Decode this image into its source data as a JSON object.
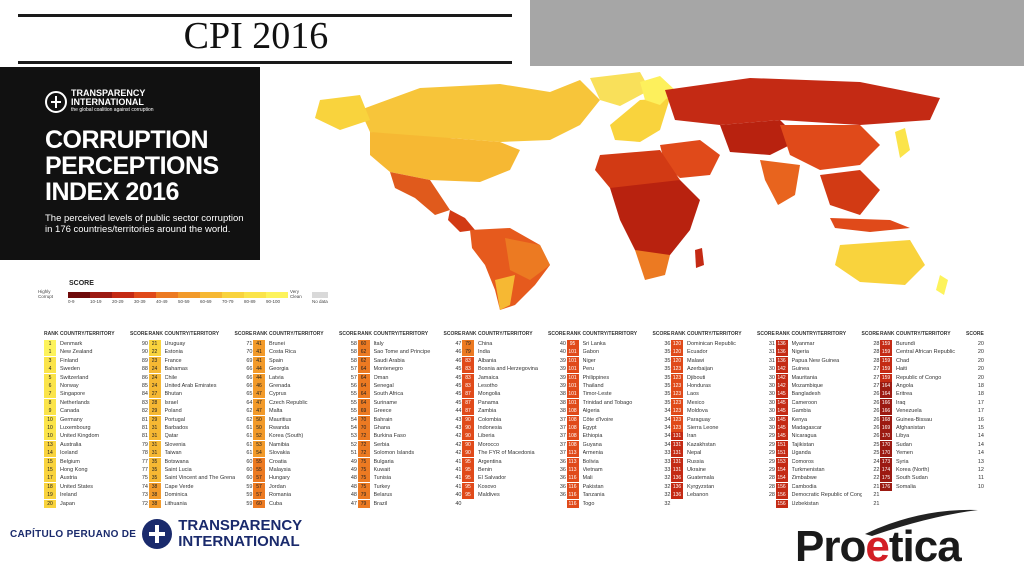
{
  "slide_title": "CPI 2016",
  "cover": {
    "org_line1": "TRANSPARENCY",
    "org_line2": "INTERNATIONAL",
    "org_tagline": "the global coalition against corruption",
    "heading1": "CORRUPTION",
    "heading2": "PERCEPTIONS",
    "heading3": "INDEX 2016",
    "subtitle": "The perceived levels of public sector corruption in 176 countries/territories around the world."
  },
  "legend": {
    "title": "SCORE",
    "low_label": "Highly Corrupt",
    "high_label": "Very Clean",
    "no_data": "No data",
    "bins": [
      {
        "label": "0-9",
        "color": "#6e0b0b"
      },
      {
        "label": "10-19",
        "color": "#9c1a12"
      },
      {
        "label": "20-29",
        "color": "#c42a14"
      },
      {
        "label": "30-39",
        "color": "#e04a1a"
      },
      {
        "label": "40-49",
        "color": "#ec7a22"
      },
      {
        "label": "50-59",
        "color": "#f29a2a"
      },
      {
        "label": "60-69",
        "color": "#f6b833"
      },
      {
        "label": "70-79",
        "color": "#f9d33d"
      },
      {
        "label": "80-89",
        "color": "#fbe44a"
      },
      {
        "label": "90-100",
        "color": "#fdf35c"
      }
    ],
    "no_data_color": "#d9d9d9"
  },
  "table": {
    "headers": {
      "rank": "RANK",
      "country": "COUNTRY/TERRITORY",
      "score": "SCORE"
    },
    "columns": [
      [
        [
          "1",
          "Denmark",
          "90"
        ],
        [
          "1",
          "New Zealand",
          "90"
        ],
        [
          "3",
          "Finland",
          "89"
        ],
        [
          "4",
          "Sweden",
          "88"
        ],
        [
          "5",
          "Switzerland",
          "86"
        ],
        [
          "6",
          "Norway",
          "85"
        ],
        [
          "7",
          "Singapore",
          "84"
        ],
        [
          "8",
          "Netherlands",
          "83"
        ],
        [
          "9",
          "Canada",
          "82"
        ],
        [
          "10",
          "Germany",
          "81"
        ],
        [
          "10",
          "Luxembourg",
          "81"
        ],
        [
          "10",
          "United Kingdom",
          "81"
        ],
        [
          "13",
          "Australia",
          "79"
        ],
        [
          "14",
          "Iceland",
          "78"
        ],
        [
          "15",
          "Belgium",
          "77"
        ],
        [
          "15",
          "Hong Kong",
          "77"
        ],
        [
          "17",
          "Austria",
          "75"
        ],
        [
          "18",
          "United States",
          "74"
        ],
        [
          "19",
          "Ireland",
          "73"
        ],
        [
          "20",
          "Japan",
          "72"
        ]
      ],
      [
        [
          "21",
          "Uruguay",
          "71"
        ],
        [
          "22",
          "Estonia",
          "70"
        ],
        [
          "23",
          "France",
          "69"
        ],
        [
          "24",
          "Bahamas",
          "66"
        ],
        [
          "24",
          "Chile",
          "66"
        ],
        [
          "24",
          "United Arab Emirates",
          "66"
        ],
        [
          "27",
          "Bhutan",
          "65"
        ],
        [
          "28",
          "Israel",
          "64"
        ],
        [
          "29",
          "Poland",
          "62"
        ],
        [
          "29",
          "Portugal",
          "62"
        ],
        [
          "31",
          "Barbados",
          "61"
        ],
        [
          "31",
          "Qatar",
          "61"
        ],
        [
          "31",
          "Slovenia",
          "61"
        ],
        [
          "31",
          "Taiwan",
          "61"
        ],
        [
          "35",
          "Botswana",
          "60"
        ],
        [
          "35",
          "Saint Lucia",
          "60"
        ],
        [
          "35",
          "Saint Vincent and The Grenadines",
          "60"
        ],
        [
          "38",
          "Cape Verde",
          "59"
        ],
        [
          "38",
          "Dominica",
          "59"
        ],
        [
          "38",
          "Lithuania",
          "59"
        ]
      ],
      [
        [
          "41",
          "Brunei",
          "58"
        ],
        [
          "41",
          "Costa Rica",
          "58"
        ],
        [
          "41",
          "Spain",
          "58"
        ],
        [
          "44",
          "Georgia",
          "57"
        ],
        [
          "44",
          "Latvia",
          "57"
        ],
        [
          "46",
          "Grenada",
          "56"
        ],
        [
          "47",
          "Cyprus",
          "55"
        ],
        [
          "47",
          "Czech Republic",
          "55"
        ],
        [
          "47",
          "Malta",
          "55"
        ],
        [
          "50",
          "Mauritius",
          "54"
        ],
        [
          "50",
          "Rwanda",
          "54"
        ],
        [
          "52",
          "Korea (South)",
          "53"
        ],
        [
          "53",
          "Namibia",
          "52"
        ],
        [
          "54",
          "Slovakia",
          "51"
        ],
        [
          "55",
          "Croatia",
          "49"
        ],
        [
          "55",
          "Malaysia",
          "49"
        ],
        [
          "57",
          "Hungary",
          "48"
        ],
        [
          "57",
          "Jordan",
          "48"
        ],
        [
          "57",
          "Romania",
          "48"
        ],
        [
          "60",
          "Cuba",
          "47"
        ]
      ],
      [
        [
          "60",
          "Italy",
          "47"
        ],
        [
          "62",
          "Sao Tome and Principe",
          "46"
        ],
        [
          "62",
          "Saudi Arabia",
          "46"
        ],
        [
          "64",
          "Montenegro",
          "45"
        ],
        [
          "64",
          "Oman",
          "45"
        ],
        [
          "64",
          "Senegal",
          "45"
        ],
        [
          "64",
          "South Africa",
          "45"
        ],
        [
          "64",
          "Suriname",
          "45"
        ],
        [
          "69",
          "Greece",
          "44"
        ],
        [
          "70",
          "Bahrain",
          "43"
        ],
        [
          "70",
          "Ghana",
          "43"
        ],
        [
          "72",
          "Burkina Faso",
          "42"
        ],
        [
          "72",
          "Serbia",
          "42"
        ],
        [
          "72",
          "Solomon Islands",
          "42"
        ],
        [
          "75",
          "Bulgaria",
          "41"
        ],
        [
          "75",
          "Kuwait",
          "41"
        ],
        [
          "75",
          "Tunisia",
          "41"
        ],
        [
          "75",
          "Turkey",
          "41"
        ],
        [
          "79",
          "Belarus",
          "40"
        ],
        [
          "79",
          "Brazil",
          "40"
        ]
      ],
      [
        [
          "79",
          "China",
          "40"
        ],
        [
          "79",
          "India",
          "40"
        ],
        [
          "83",
          "Albania",
          "39"
        ],
        [
          "83",
          "Bosnia and Herzegovina",
          "39"
        ],
        [
          "83",
          "Jamaica",
          "39"
        ],
        [
          "83",
          "Lesotho",
          "39"
        ],
        [
          "87",
          "Mongolia",
          "38"
        ],
        [
          "87",
          "Panama",
          "38"
        ],
        [
          "87",
          "Zambia",
          "38"
        ],
        [
          "90",
          "Colombia",
          "37"
        ],
        [
          "90",
          "Indonesia",
          "37"
        ],
        [
          "90",
          "Liberia",
          "37"
        ],
        [
          "90",
          "Morocco",
          "37"
        ],
        [
          "90",
          "The FYR of Macedonia",
          "37"
        ],
        [
          "95",
          "Argentina",
          "36"
        ],
        [
          "95",
          "Benin",
          "36"
        ],
        [
          "95",
          "El Salvador",
          "36"
        ],
        [
          "95",
          "Kosovo",
          "36"
        ],
        [
          "95",
          "Maldives",
          "36"
        ]
      ],
      [
        [
          "95",
          "Sri Lanka",
          "36"
        ],
        [
          "101",
          "Gabon",
          "35"
        ],
        [
          "101",
          "Niger",
          "35"
        ],
        [
          "101",
          "Peru",
          "35"
        ],
        [
          "101",
          "Philippines",
          "35"
        ],
        [
          "101",
          "Thailand",
          "35"
        ],
        [
          "101",
          "Timor-Leste",
          "35"
        ],
        [
          "101",
          "Trinidad and Tobago",
          "35"
        ],
        [
          "108",
          "Algeria",
          "34"
        ],
        [
          "108",
          "Côte d'Ivoire",
          "34"
        ],
        [
          "108",
          "Egypt",
          "34"
        ],
        [
          "108",
          "Ethiopia",
          "34"
        ],
        [
          "108",
          "Guyana",
          "34"
        ],
        [
          "113",
          "Armenia",
          "33"
        ],
        [
          "113",
          "Bolivia",
          "33"
        ],
        [
          "113",
          "Vietnam",
          "33"
        ],
        [
          "116",
          "Mali",
          "32"
        ],
        [
          "116",
          "Pakistan",
          "32"
        ],
        [
          "116",
          "Tanzania",
          "32"
        ],
        [
          "116",
          "Togo",
          "32"
        ]
      ],
      [
        [
          "120",
          "Dominican Republic",
          "31"
        ],
        [
          "120",
          "Ecuador",
          "31"
        ],
        [
          "120",
          "Malawi",
          "31"
        ],
        [
          "123",
          "Azerbaijan",
          "30"
        ],
        [
          "123",
          "Djibouti",
          "30"
        ],
        [
          "123",
          "Honduras",
          "30"
        ],
        [
          "123",
          "Laos",
          "30"
        ],
        [
          "123",
          "Mexico",
          "30"
        ],
        [
          "123",
          "Moldova",
          "30"
        ],
        [
          "123",
          "Paraguay",
          "30"
        ],
        [
          "123",
          "Sierra Leone",
          "30"
        ],
        [
          "131",
          "Iran",
          "29"
        ],
        [
          "131",
          "Kazakhstan",
          "29"
        ],
        [
          "131",
          "Nepal",
          "29"
        ],
        [
          "131",
          "Russia",
          "29"
        ],
        [
          "131",
          "Ukraine",
          "29"
        ],
        [
          "136",
          "Guatemala",
          "28"
        ],
        [
          "136",
          "Kyrgyzstan",
          "28"
        ],
        [
          "136",
          "Lebanon",
          "28"
        ]
      ],
      [
        [
          "136",
          "Myanmar",
          "28"
        ],
        [
          "136",
          "Nigeria",
          "28"
        ],
        [
          "136",
          "Papua New Guinea",
          "28"
        ],
        [
          "142",
          "Guinea",
          "27"
        ],
        [
          "142",
          "Mauritania",
          "27"
        ],
        [
          "142",
          "Mozambique",
          "27"
        ],
        [
          "145",
          "Bangladesh",
          "26"
        ],
        [
          "145",
          "Cameroon",
          "26"
        ],
        [
          "145",
          "Gambia",
          "26"
        ],
        [
          "145",
          "Kenya",
          "26"
        ],
        [
          "145",
          "Madagascar",
          "26"
        ],
        [
          "145",
          "Nicaragua",
          "26"
        ],
        [
          "151",
          "Tajikistan",
          "25"
        ],
        [
          "151",
          "Uganda",
          "25"
        ],
        [
          "153",
          "Comoros",
          "24"
        ],
        [
          "154",
          "Turkmenistan",
          "22"
        ],
        [
          "154",
          "Zimbabwe",
          "22"
        ],
        [
          "156",
          "Cambodia",
          "21"
        ],
        [
          "156",
          "Democratic Republic of Congo",
          "21"
        ],
        [
          "156",
          "Uzbekistan",
          "21"
        ]
      ],
      [
        [
          "159",
          "Burundi",
          "20"
        ],
        [
          "159",
          "Central African Republic",
          "20"
        ],
        [
          "159",
          "Chad",
          "20"
        ],
        [
          "159",
          "Haiti",
          "20"
        ],
        [
          "159",
          "Republic of Congo",
          "20"
        ],
        [
          "164",
          "Angola",
          "18"
        ],
        [
          "164",
          "Eritrea",
          "18"
        ],
        [
          "166",
          "Iraq",
          "17"
        ],
        [
          "166",
          "Venezuela",
          "17"
        ],
        [
          "168",
          "Guinea-Bissau",
          "16"
        ],
        [
          "169",
          "Afghanistan",
          "15"
        ],
        [
          "170",
          "Libya",
          "14"
        ],
        [
          "170",
          "Sudan",
          "14"
        ],
        [
          "170",
          "Yemen",
          "14"
        ],
        [
          "173",
          "Syria",
          "13"
        ],
        [
          "174",
          "Korea (North)",
          "12"
        ],
        [
          "175",
          "South Sudan",
          "11"
        ],
        [
          "176",
          "Somalia",
          "10"
        ]
      ]
    ]
  },
  "footer": {
    "chapter_text": "CAPÍTULO PERUANO DE",
    "brand_line1": "TRANSPARENCY",
    "brand_line2": "INTERNATIONAL",
    "logo_pre": "Pro",
    "logo_e": "e",
    "logo_post": "tica"
  }
}
